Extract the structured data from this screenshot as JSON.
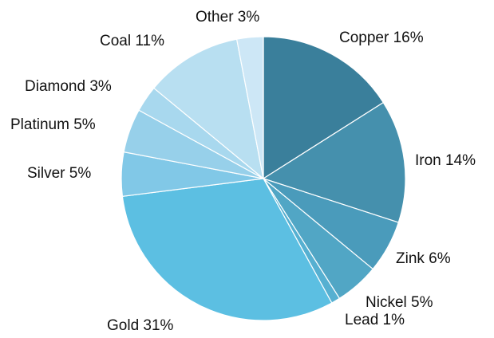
{
  "chart_data": {
    "type": "pie",
    "slices": [
      {
        "label": "Copper",
        "value": 16,
        "color": "#3a7f9b"
      },
      {
        "label": "Iron",
        "value": 14,
        "color": "#4590ad"
      },
      {
        "label": "Zink",
        "value": 6,
        "color": "#4a9bbb"
      },
      {
        "label": "Nickel",
        "value": 5,
        "color": "#51a6c5"
      },
      {
        "label": "Lead",
        "value": 1,
        "color": "#56b0d1"
      },
      {
        "label": "Gold",
        "value": 31,
        "color": "#5cbfe2"
      },
      {
        "label": "Silver",
        "value": 5,
        "color": "#81c8e7"
      },
      {
        "label": "Platinum",
        "value": 5,
        "color": "#97d0ea"
      },
      {
        "label": "Diamond",
        "value": 3,
        "color": "#a8d8ee"
      },
      {
        "label": "Coal",
        "value": 11,
        "color": "#b8dff1"
      },
      {
        "label": "Other",
        "value": 3,
        "color": "#cde7f6"
      }
    ],
    "labels": [
      "Copper 16%",
      "Iron 14%",
      "Zink 6%",
      "Nickel 5%",
      "Lead 1%",
      "Gold 31%",
      "Silver 5%",
      "Platinum 5%",
      "Diamond 3%",
      "Coal 11%",
      "Other 3%"
    ],
    "start_angle": "12 o'clock",
    "direction": "clockwise",
    "legend": "none"
  }
}
